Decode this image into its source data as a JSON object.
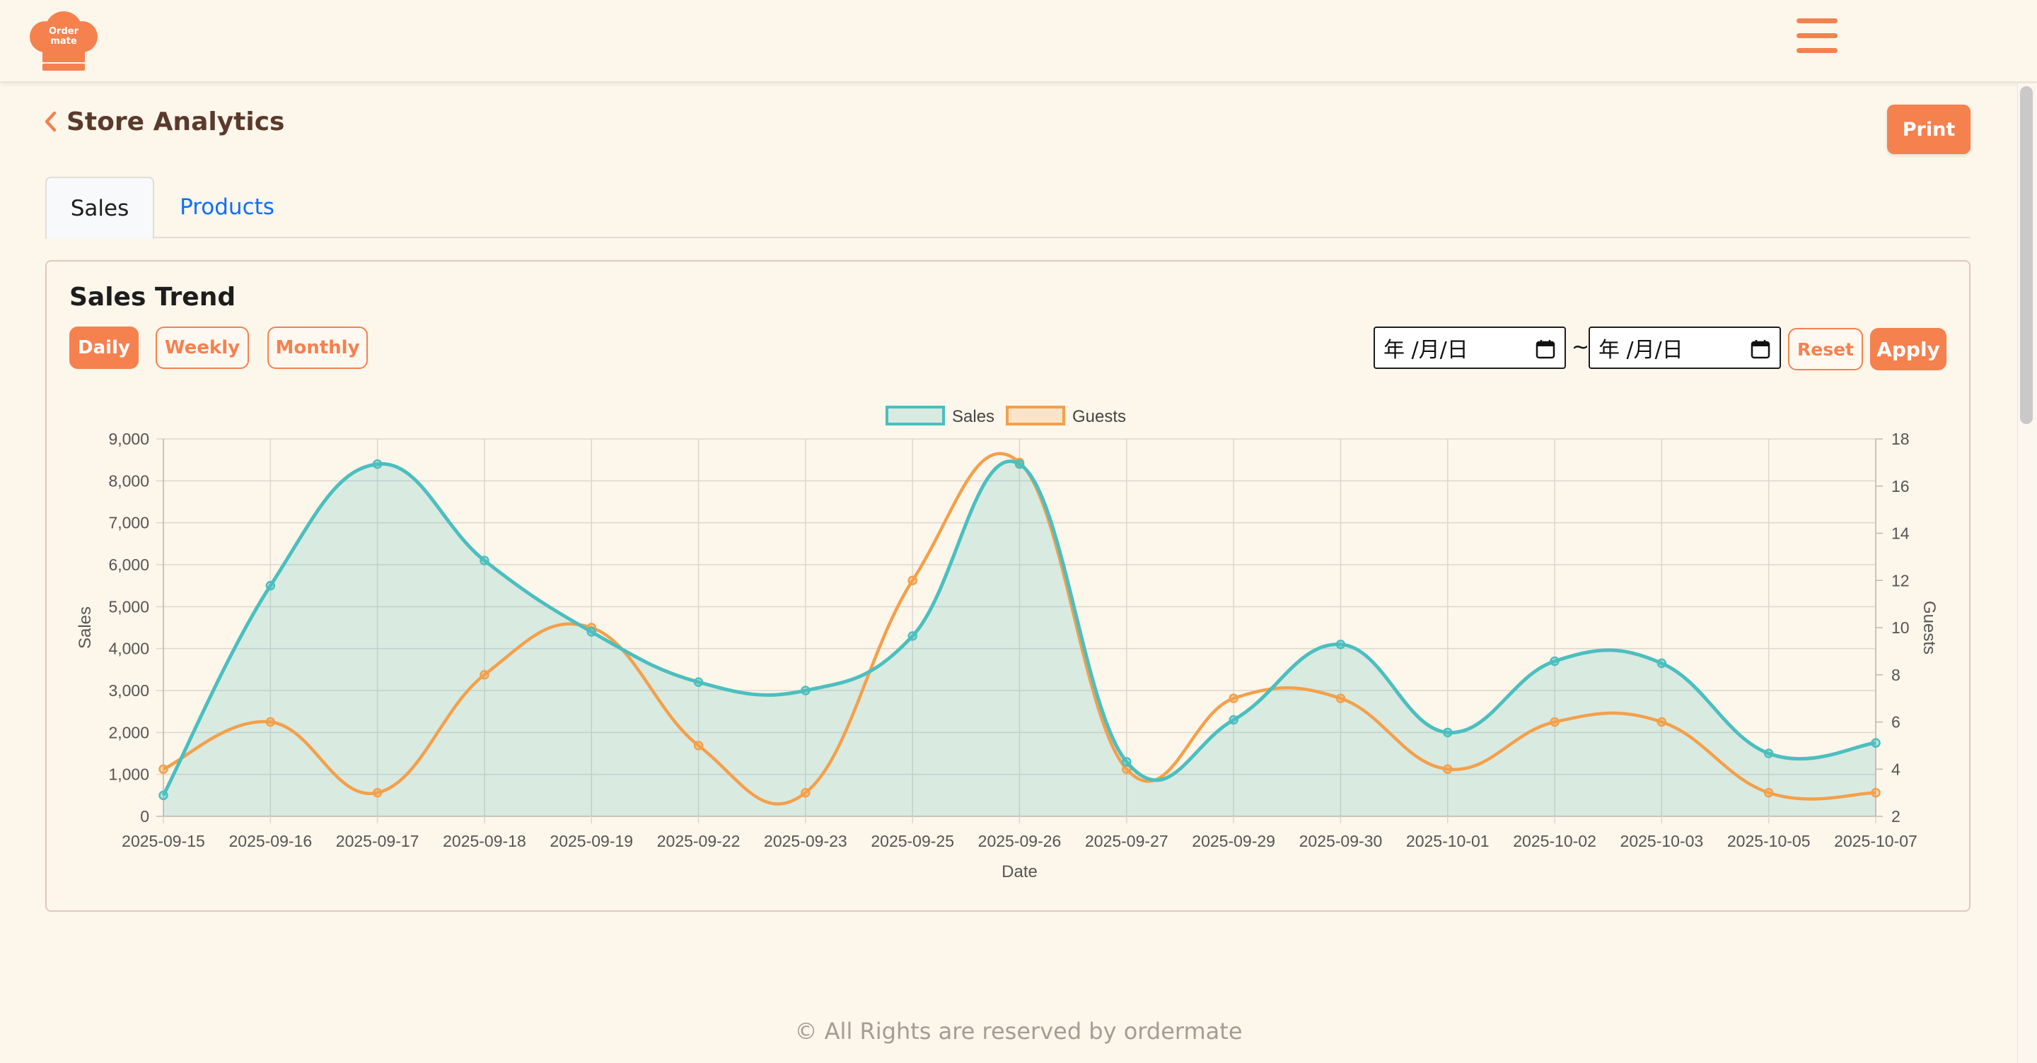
{
  "header": {
    "logo_text_line1": "Order",
    "logo_text_line2": "mate"
  },
  "page": {
    "title": "Store Analytics",
    "print_label": "Print"
  },
  "tabs": [
    {
      "label": "Sales",
      "active": true
    },
    {
      "label": "Products",
      "active": false
    }
  ],
  "card": {
    "title": "Sales Trend",
    "periods": [
      "Daily",
      "Weekly",
      "Monthly"
    ],
    "selected_period": "Daily",
    "date_from_placeholder": "年 /月/日",
    "date_to_placeholder": "年 /月/日",
    "separator": "~",
    "reset_label": "Reset",
    "apply_label": "Apply"
  },
  "chart_data": {
    "type": "line",
    "x": [
      "2025-09-15",
      "2025-09-16",
      "2025-09-17",
      "2025-09-18",
      "2025-09-19",
      "2025-09-22",
      "2025-09-23",
      "2025-09-25",
      "2025-09-26",
      "2025-09-27",
      "2025-09-29",
      "2025-09-30",
      "2025-10-01",
      "2025-10-02",
      "2025-10-03",
      "2025-10-05",
      "2025-10-07"
    ],
    "series": [
      {
        "name": "Sales",
        "axis": "left",
        "fill": true,
        "color": "#4bbfbf",
        "values": [
          500,
          5500,
          8400,
          6100,
          4400,
          3200,
          3000,
          4300,
          8400,
          1300,
          2300,
          4100,
          2000,
          3700,
          3650,
          1500,
          1750
        ]
      },
      {
        "name": "Guests",
        "axis": "right",
        "fill": false,
        "color": "#f4a04a",
        "values": [
          4,
          6,
          3,
          8,
          10,
          5,
          3,
          12,
          17,
          4,
          7,
          7,
          4,
          6,
          6,
          3,
          3
        ]
      }
    ],
    "xlabel": "Date",
    "ylabel": "Sales",
    "y2label": "Guests",
    "ylim": [
      0,
      9000
    ],
    "y2lim": [
      2,
      18
    ],
    "y_ticks": [
      "0",
      "1,000",
      "2,000",
      "3,000",
      "4,000",
      "5,000",
      "6,000",
      "7,000",
      "8,000",
      "9,000"
    ],
    "y2_ticks": [
      "2",
      "4",
      "6",
      "8",
      "10",
      "12",
      "14",
      "16",
      "18"
    ],
    "legend": "top-center",
    "grid": true
  },
  "footer": {
    "text": "© All Rights are reserved by ordermate"
  },
  "colors": {
    "accent": "#f5814f",
    "background": "#fdf6ea",
    "link": "#0d6efd"
  }
}
